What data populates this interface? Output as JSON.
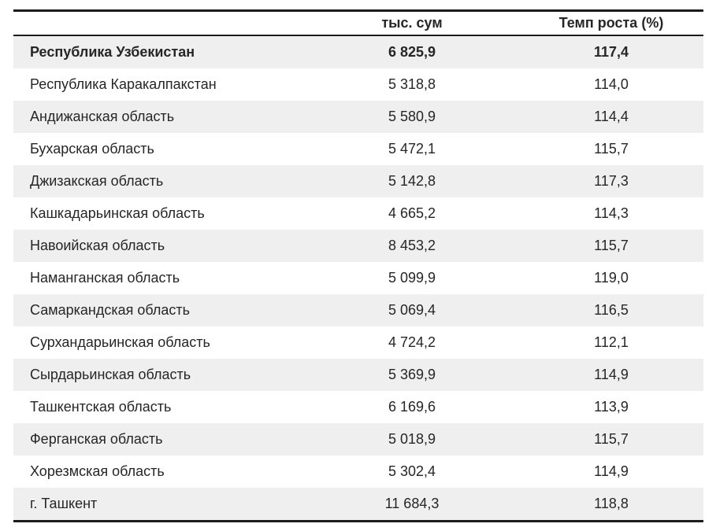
{
  "table": {
    "header": {
      "region": "",
      "value": "тыс. сум",
      "growth": "Темп роста (%)"
    },
    "rows": [
      {
        "region": "Республика Узбекистан",
        "value": "6 825,9",
        "growth": "117,4",
        "bold": true
      },
      {
        "region": "Республика Каракалпакстан",
        "value": "5 318,8",
        "growth": "114,0",
        "bold": false
      },
      {
        "region": "Андижанская область",
        "value": "5 580,9",
        "growth": "114,4",
        "bold": false
      },
      {
        "region": "Бухарская область",
        "value": "5 472,1",
        "growth": "115,7",
        "bold": false
      },
      {
        "region": "Джизакская область",
        "value": "5 142,8",
        "growth": "117,3",
        "bold": false
      },
      {
        "region": "Кашкадарьинская область",
        "value": "4 665,2",
        "growth": "114,3",
        "bold": false
      },
      {
        "region": "Навоийская область",
        "value": "8 453,2",
        "growth": "115,7",
        "bold": false
      },
      {
        "region": "Наманганская область",
        "value": "5 099,9",
        "growth": "119,0",
        "bold": false
      },
      {
        "region": "Самаркандская область",
        "value": "5 069,4",
        "growth": "116,5",
        "bold": false
      },
      {
        "region": "Сурхандарьинская область",
        "value": "4 724,2",
        "growth": "112,1",
        "bold": false
      },
      {
        "region": "Сырдарьинская область",
        "value": "5 369,9",
        "growth": "114,9",
        "bold": false
      },
      {
        "region": "Ташкентская область",
        "value": "6 169,6",
        "growth": "113,9",
        "bold": false
      },
      {
        "region": "Ферганская область",
        "value": "5 018,9",
        "growth": "115,7",
        "bold": false
      },
      {
        "region": "Хорезмская область",
        "value": "5 302,4",
        "growth": "114,9",
        "bold": false
      },
      {
        "region": "г. Ташкент",
        "value": "11 684,3",
        "growth": "118,8",
        "bold": false
      }
    ]
  },
  "colors": {
    "stripe": "#efefef",
    "border": "#1b1b1b",
    "text": "#262626"
  }
}
